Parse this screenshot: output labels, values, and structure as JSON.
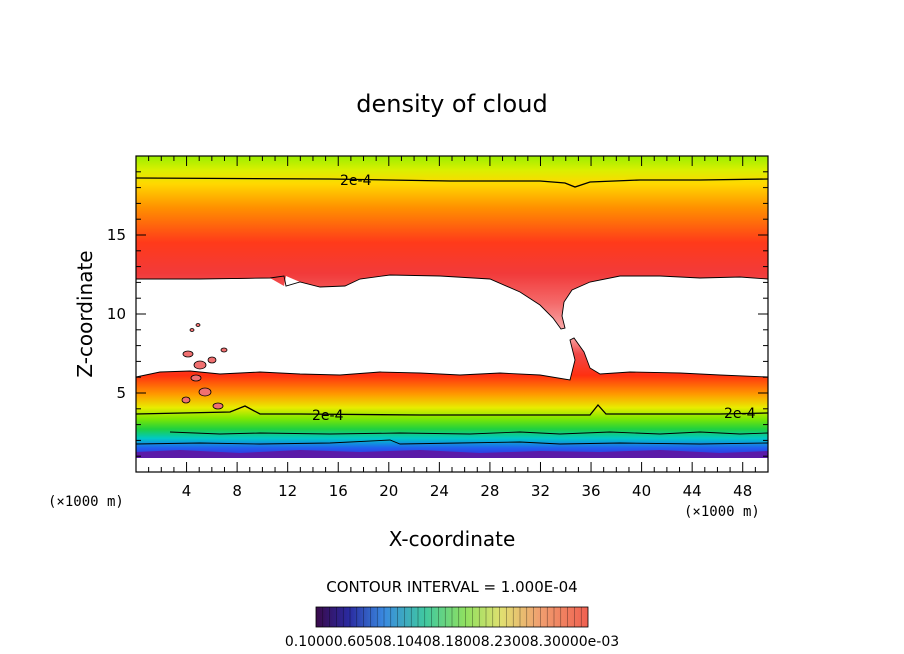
{
  "chart_data": {
    "type": "heatmap",
    "title": "density of cloud",
    "xlabel": "X-coordinate",
    "ylabel": "Z-coordinate",
    "x_unit": "(×1000 m)",
    "xlim": [
      0,
      50
    ],
    "ylim": [
      0,
      20
    ],
    "x_ticks": [
      4,
      8,
      12,
      16,
      20,
      24,
      28,
      32,
      36,
      40,
      44,
      48
    ],
    "y_ticks": [
      5,
      10,
      15
    ],
    "contour_labels": [
      "2e-4",
      "2e-4",
      "2e-4"
    ],
    "contour_interval": "CONTOUR INTERVAL = 1.000E-04",
    "colorbar_label": "0.10000.60508.10408.18008.23008.30000e-03",
    "layers": {
      "upper_band_z": [
        12.2,
        20
      ],
      "lower_band_z": [
        1.0,
        6.0
      ],
      "contour_level": "2e-4",
      "upper_contour_z": 18.6,
      "lower_contour_z": 3.7
    }
  }
}
